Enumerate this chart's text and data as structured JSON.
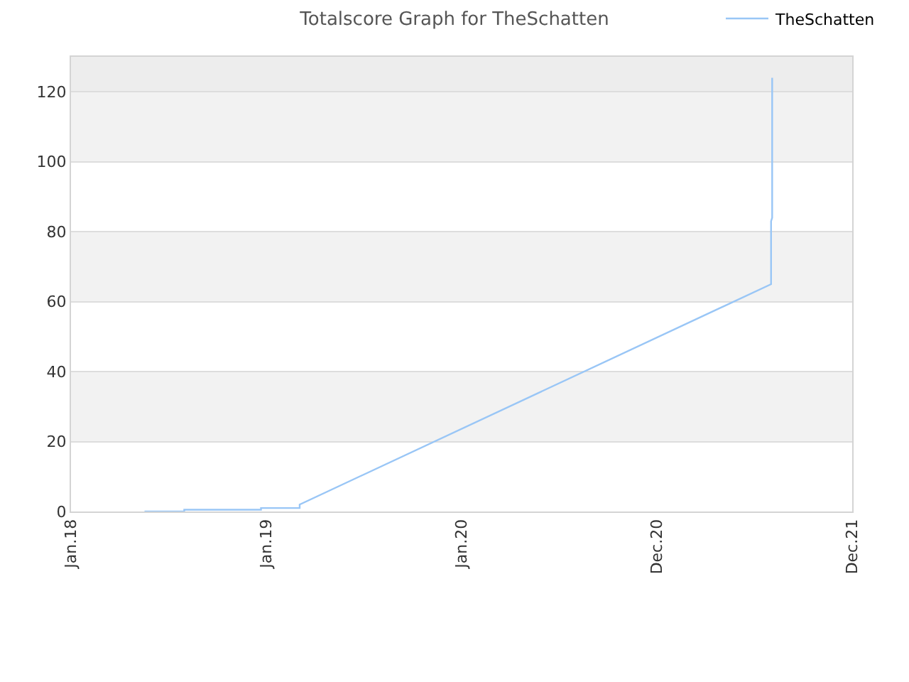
{
  "chart_data": {
    "type": "line",
    "title": "Totalscore Graph for TheSchatten",
    "x": [
      "2018-05-30",
      "2018-08-11",
      "2018-08-11",
      "2018-12-30",
      "2018-12-30",
      "2019-03-11",
      "2019-03-11",
      "2021-07-24",
      "2021-07-24",
      "2021-07-26",
      "2021-07-26"
    ],
    "series": [
      {
        "name": "TheSchatten",
        "color": "#99c6f6",
        "values": [
          0,
          0,
          0.5,
          0.5,
          1,
          1,
          2,
          65,
          83,
          84,
          124
        ]
      }
    ],
    "xlim": [
      "2018-01-15",
      "2021-12-20"
    ],
    "xticks": [
      {
        "value": "2018-01-15",
        "label": "Jan.18"
      },
      {
        "value": "2019-01-08T18:00",
        "label": "Jan.19"
      },
      {
        "value": "2020-01-02T12:00",
        "label": "Jan.20"
      },
      {
        "value": "2020-12-26T06:00",
        "label": "Dec.20"
      },
      {
        "value": "2021-12-20",
        "label": "Dec.21"
      }
    ],
    "ylim": [
      0,
      130
    ],
    "yticks": [
      0,
      20,
      40,
      60,
      80,
      100,
      120
    ],
    "bands": [
      {
        "axis": "y",
        "from": 120,
        "to": 130,
        "color": "#ededed"
      }
    ],
    "grid": "y",
    "legend": "top right",
    "line_style": "solid"
  }
}
